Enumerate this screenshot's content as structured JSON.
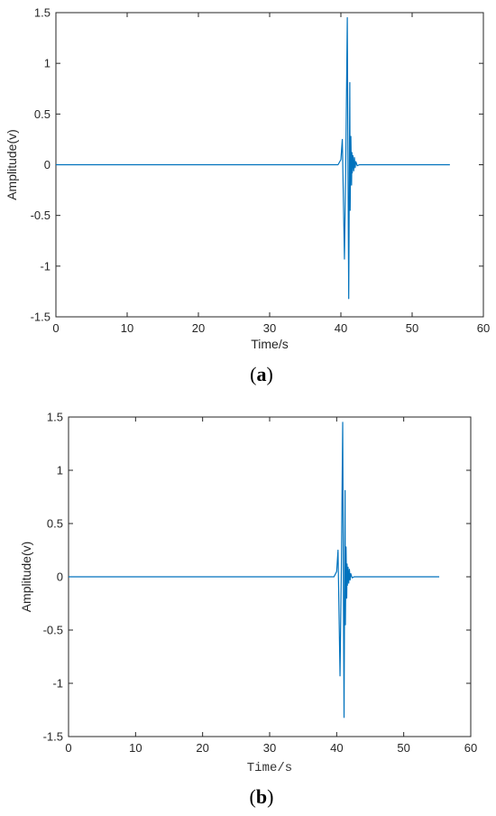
{
  "chart_data": [
    {
      "type": "line",
      "panel_label": "a",
      "xlabel": "Time/s",
      "ylabel": "Amplitude(v)",
      "xlim": [
        0,
        60
      ],
      "ylim": [
        -1.5,
        1.5
      ],
      "xticks": [
        "0",
        "10",
        "20",
        "30",
        "40",
        "50",
        "60"
      ],
      "yticks": [
        "1.5",
        "1",
        "0.5",
        "0",
        "-0.5",
        "-1",
        "-1.5"
      ],
      "grid": false,
      "color": "#0072BD",
      "x": [
        0,
        39.6,
        40.0,
        40.2,
        40.5,
        40.7,
        40.9,
        41.0,
        41.1,
        41.25,
        41.3,
        41.4,
        41.5,
        41.55,
        41.6,
        41.7,
        41.8,
        41.9,
        42.0,
        42.1,
        42.3,
        42.6,
        55.3
      ],
      "y": [
        0,
        0,
        0.05,
        0.25,
        -0.93,
        0.1,
        1.45,
        -0.1,
        -1.32,
        0.81,
        -0.45,
        0.28,
        -0.2,
        0.12,
        -0.08,
        0.09,
        -0.06,
        0.07,
        -0.03,
        0.03,
        -0.01,
        0,
        0
      ]
    },
    {
      "type": "line",
      "panel_label": "b",
      "xlabel": "Time/s",
      "ylabel": "Amplitude(v)",
      "xlim": [
        0,
        60
      ],
      "ylim": [
        -1.5,
        1.5
      ],
      "xticks": [
        "0",
        "10",
        "20",
        "30",
        "40",
        "50",
        "60"
      ],
      "yticks": [
        "1.5",
        "1",
        "0.5",
        "0",
        "-0.5",
        "-1",
        "-1.5"
      ],
      "grid": false,
      "color": "#0072BD",
      "x": [
        0,
        39.6,
        40.0,
        40.2,
        40.5,
        40.7,
        40.9,
        41.0,
        41.1,
        41.25,
        41.3,
        41.4,
        41.5,
        41.55,
        41.6,
        41.7,
        41.8,
        41.9,
        42.0,
        42.1,
        42.3,
        42.6,
        55.3
      ],
      "y": [
        0,
        0,
        0.05,
        0.25,
        -0.93,
        0.1,
        1.45,
        -0.1,
        -1.32,
        0.81,
        -0.45,
        0.28,
        -0.2,
        0.12,
        -0.08,
        0.09,
        -0.06,
        0.07,
        -0.03,
        0.03,
        -0.01,
        0,
        0
      ]
    }
  ]
}
